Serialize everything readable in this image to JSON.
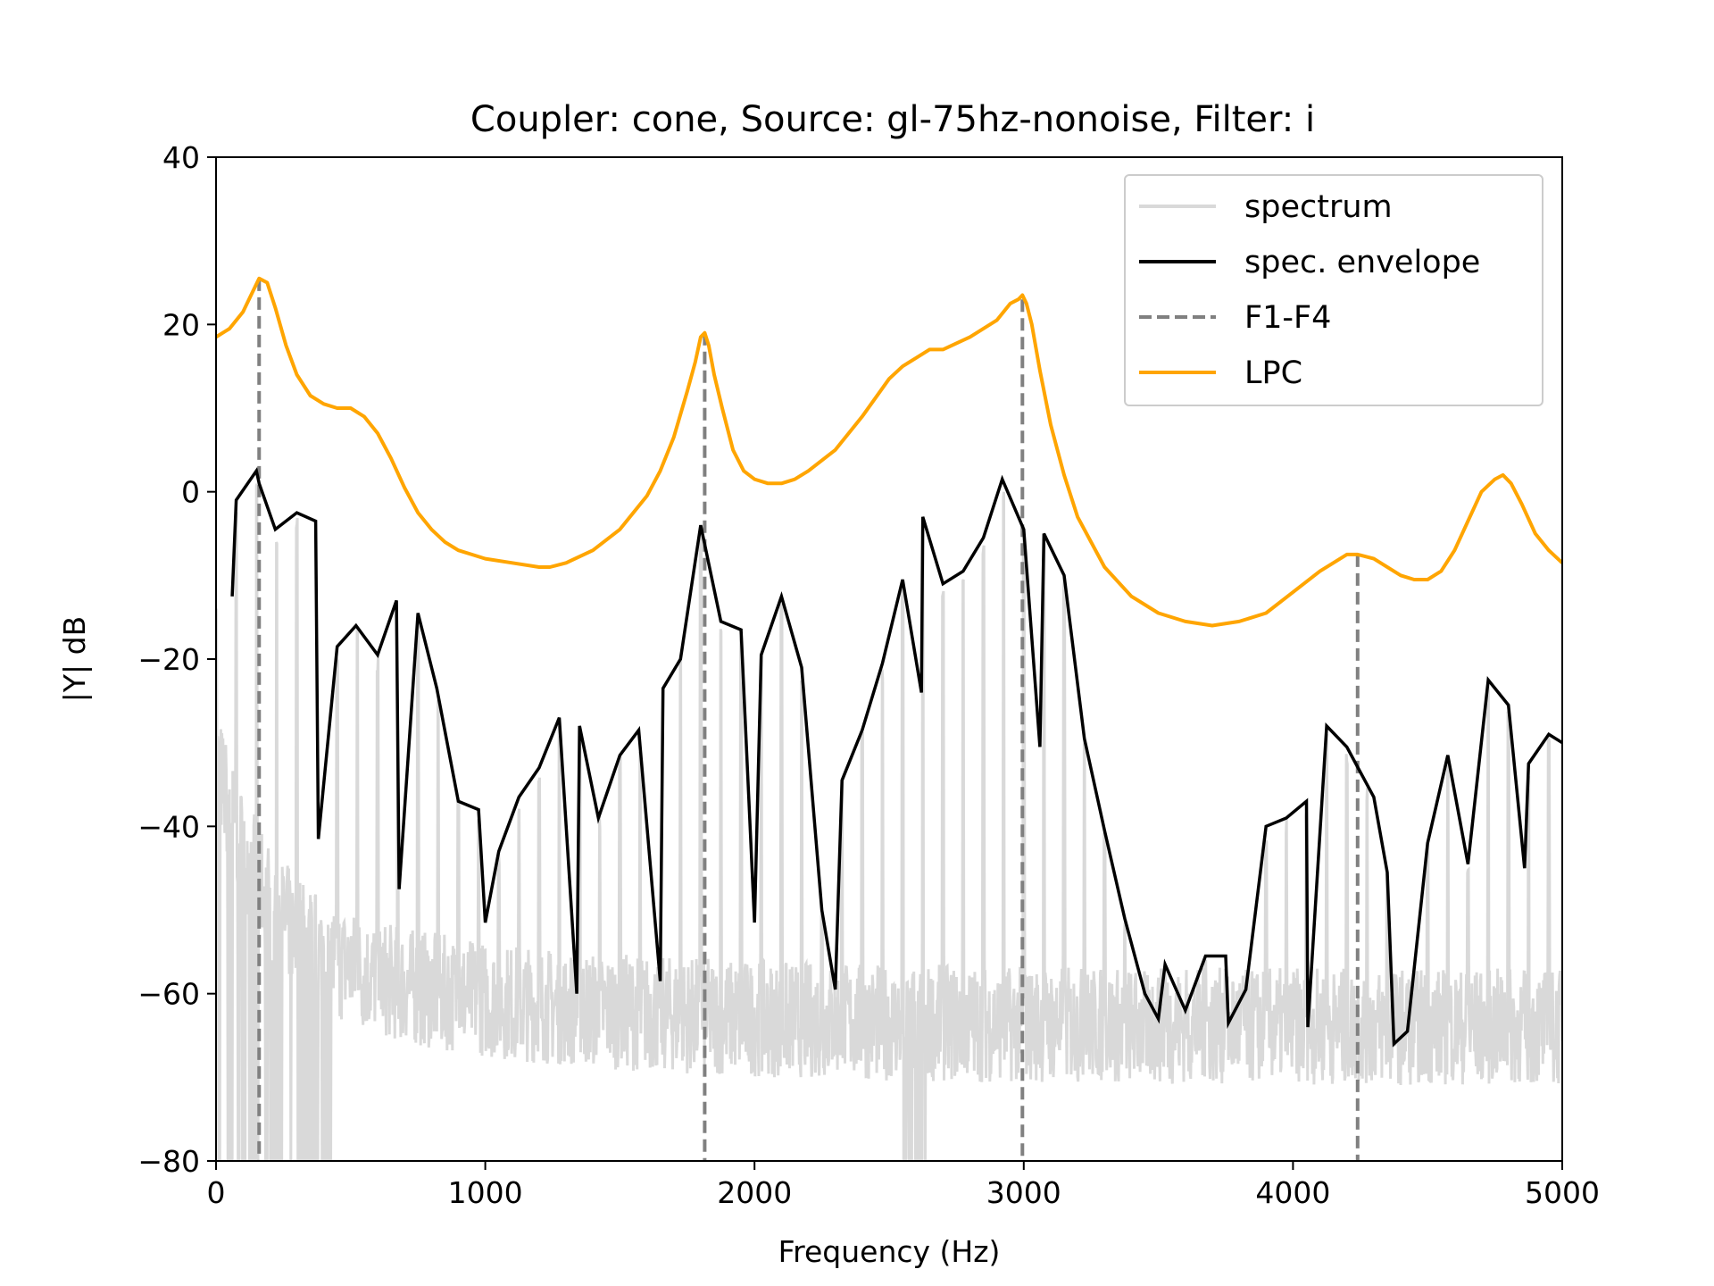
{
  "chart_data": {
    "type": "line",
    "title": "Coupler: cone, Source: gl-75hz-nonoise, Filter: i",
    "xlabel": "Frequency (Hz)",
    "ylabel": "|Y| dB",
    "xlim": [
      0,
      5000
    ],
    "ylim": [
      -80,
      40
    ],
    "xticks": [
      "0",
      "1000",
      "2000",
      "3000",
      "4000",
      "5000"
    ],
    "yticks": [
      "−80",
      "−60",
      "−40",
      "−20",
      "0",
      "20",
      "40"
    ],
    "legend_position": "top-right",
    "grid": false,
    "series": [
      {
        "name": "spectrum",
        "color": "#d9d9d9",
        "style": "dense harmonic spectrum, floor near -65 dB, harmonic peaks every ~75 Hz reaching the envelope"
      },
      {
        "name": "spec. envelope",
        "color": "#000000",
        "x": [
          60,
          75,
          150,
          160,
          220,
          300,
          370,
          380,
          450,
          520,
          600,
          670,
          680,
          750,
          820,
          900,
          975,
          1000,
          1050,
          1125,
          1200,
          1275,
          1340,
          1350,
          1420,
          1500,
          1570,
          1650,
          1660,
          1725,
          1800,
          1875,
          1950,
          2000,
          2025,
          2100,
          2175,
          2250,
          2300,
          2325,
          2400,
          2475,
          2550,
          2620,
          2625,
          2700,
          2775,
          2850,
          2920,
          3000,
          3060,
          3075,
          3150,
          3225,
          3300,
          3375,
          3450,
          3500,
          3525,
          3600,
          3675,
          3750,
          3760,
          3825,
          3900,
          3975,
          4050,
          4055,
          4125,
          4200,
          4250,
          4300,
          4350,
          4375,
          4425,
          4500,
          4575,
          4650,
          4725,
          4800,
          4860,
          4875,
          4950,
          5000
        ],
        "y": [
          -12.5,
          -1,
          2.5,
          1,
          -4.5,
          -2.5,
          -3.5,
          -41.5,
          -18.5,
          -16,
          -19.5,
          -13,
          -47.5,
          -14.5,
          -23.5,
          -37,
          -38,
          -51.5,
          -43,
          -36.5,
          -33,
          -27,
          -60,
          -28,
          -39,
          -31.5,
          -28.5,
          -58.5,
          -23.5,
          -20,
          -4,
          -15.5,
          -16.5,
          -51.5,
          -19.5,
          -12.5,
          -21,
          -50,
          -59.5,
          -34.5,
          -28.5,
          -20.5,
          -10.5,
          -24,
          -3,
          -11,
          -9.5,
          -5.5,
          1.5,
          -4.5,
          -30.5,
          -5,
          -10,
          -29.5,
          -40.5,
          -51,
          -60,
          -63,
          -56.5,
          -62,
          -55.5,
          -55.5,
          -63.5,
          -59.5,
          -40,
          -39,
          -37,
          -64,
          -28,
          -30.5,
          -33.5,
          -36.5,
          -45.5,
          -66,
          -64.5,
          -42,
          -31.5,
          -44.5,
          -22.5,
          -25.5,
          -45,
          -32.5,
          -29,
          -30
        ]
      },
      {
        "name": "F1-F4",
        "color": "#808080",
        "style": "dashed",
        "x": [
          160,
          1815,
          2995,
          4240
        ],
        "y_top": [
          25.5,
          19,
          23,
          -7.5
        ]
      },
      {
        "name": "LPC",
        "color": "#ffa500",
        "x": [
          0,
          50,
          100,
          130,
          160,
          190,
          220,
          260,
          300,
          350,
          400,
          450,
          500,
          550,
          600,
          650,
          700,
          750,
          800,
          850,
          900,
          950,
          1000,
          1100,
          1200,
          1240,
          1300,
          1400,
          1500,
          1600,
          1650,
          1700,
          1750,
          1780,
          1800,
          1815,
          1830,
          1850,
          1880,
          1920,
          1960,
          2000,
          2050,
          2100,
          2150,
          2200,
          2300,
          2400,
          2500,
          2550,
          2600,
          2650,
          2700,
          2800,
          2900,
          2950,
          2980,
          2995,
          3010,
          3030,
          3060,
          3100,
          3150,
          3200,
          3300,
          3400,
          3500,
          3600,
          3700,
          3800,
          3900,
          4000,
          4100,
          4200,
          4240,
          4300,
          4400,
          4450,
          4500,
          4550,
          4600,
          4650,
          4700,
          4750,
          4780,
          4810,
          4850,
          4900,
          4950,
          5000
        ],
        "y": [
          18.5,
          19.5,
          21.5,
          23.5,
          25.5,
          25,
          22,
          17.5,
          14,
          11.5,
          10.5,
          10,
          10,
          9,
          7,
          4,
          0.5,
          -2.5,
          -4.5,
          -6,
          -7,
          -7.5,
          -8,
          -8.5,
          -9,
          -9,
          -8.5,
          -7,
          -4.5,
          -0.5,
          2.5,
          6.5,
          12,
          15.5,
          18.5,
          19,
          17.5,
          14,
          10,
          5,
          2.5,
          1.5,
          1,
          1,
          1.5,
          2.5,
          5,
          9,
          13.5,
          15,
          16,
          17,
          17,
          18.5,
          20.5,
          22.5,
          23,
          23.5,
          22.5,
          20,
          14.5,
          8,
          2,
          -3,
          -9,
          -12.5,
          -14.5,
          -15.5,
          -16,
          -15.5,
          -14.5,
          -12,
          -9.5,
          -7.5,
          -7.5,
          -8,
          -10,
          -10.5,
          -10.5,
          -9.5,
          -7,
          -3.5,
          0,
          1.5,
          2,
          1,
          -1.5,
          -5,
          -7,
          -8.5
        ]
      }
    ]
  }
}
